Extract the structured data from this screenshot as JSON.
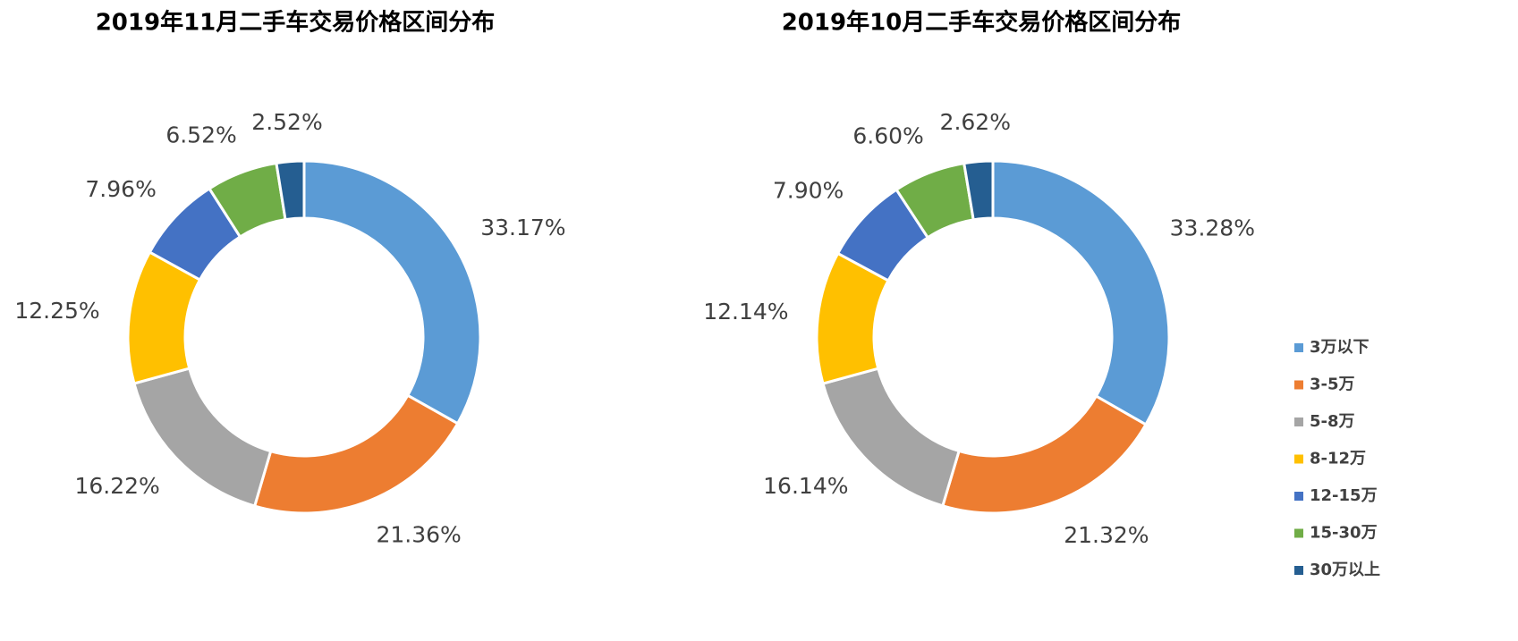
{
  "chart_data": [
    {
      "type": "donut",
      "title": "2019年11月二手车交易价格区间分布",
      "categories": [
        "3万以下",
        "3-5万",
        "5-8万",
        "8-12万",
        "12-15万",
        "15-30万",
        "30万以上"
      ],
      "values": [
        33.17,
        21.36,
        16.22,
        12.25,
        7.96,
        6.52,
        2.52
      ],
      "value_labels": [
        "33.17%",
        "21.36%",
        "16.22%",
        "12.25%",
        "7.96%",
        "6.52%",
        "2.52%"
      ],
      "colors": [
        "#5b9bd5",
        "#ed7d31",
        "#a5a5a5",
        "#ffc000",
        "#4472c4",
        "#70ad47",
        "#255e91"
      ]
    },
    {
      "type": "donut",
      "title": "2019年10月二手车交易价格区间分布",
      "categories": [
        "3万以下",
        "3-5万",
        "5-8万",
        "8-12万",
        "12-15万",
        "15-30万",
        "30万以上"
      ],
      "values": [
        33.28,
        21.32,
        16.14,
        12.14,
        7.9,
        6.6,
        2.62
      ],
      "value_labels": [
        "33.28%",
        "21.32%",
        "16.14%",
        "12.14%",
        "7.90%",
        "6.60%",
        "2.62%"
      ],
      "colors": [
        "#5b9bd5",
        "#ed7d31",
        "#a5a5a5",
        "#ffc000",
        "#4472c4",
        "#70ad47",
        "#255e91"
      ],
      "legend": "right"
    }
  ]
}
